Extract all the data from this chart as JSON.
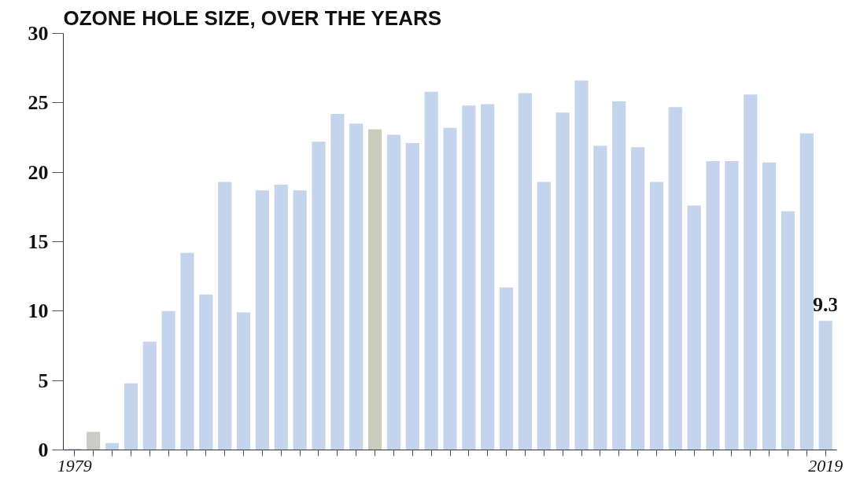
{
  "chart_data": {
    "type": "bar",
    "title": "OZONE HOLE SIZE, OVER THE YEARS",
    "x": [
      1979,
      1980,
      1981,
      1982,
      1983,
      1984,
      1985,
      1986,
      1987,
      1988,
      1989,
      1990,
      1991,
      1992,
      1993,
      1994,
      1995,
      1996,
      1997,
      1998,
      1999,
      2000,
      2001,
      2002,
      2003,
      2004,
      2005,
      2006,
      2007,
      2008,
      2009,
      2010,
      2011,
      2012,
      2013,
      2014,
      2015,
      2016,
      2017,
      2018,
      2019
    ],
    "values": [
      0.1,
      1.3,
      0.5,
      4.8,
      7.8,
      10.0,
      14.2,
      11.2,
      19.3,
      9.9,
      18.7,
      19.1,
      18.7,
      22.2,
      24.2,
      23.5,
      23.1,
      22.7,
      22.1,
      25.8,
      23.2,
      24.8,
      24.9,
      11.7,
      25.7,
      19.3,
      24.3,
      26.6,
      21.9,
      25.1,
      21.8,
      19.3,
      24.7,
      17.6,
      20.8,
      20.8,
      25.6,
      20.7,
      17.2,
      22.8,
      9.3
    ],
    "colors": [
      "#c4d4ec",
      "#c9cbc4",
      "#c4d4ec",
      "#c4d4ec",
      "#c4d4ec",
      "#c4d4ec",
      "#c4d4ec",
      "#c4d4ec",
      "#c4d4ec",
      "#c4d4ec",
      "#c4d4ec",
      "#c4d4ec",
      "#c4d4ec",
      "#c4d4ec",
      "#c4d4ec",
      "#c4d4ec",
      "#c9cbbd",
      "#c4d4ec",
      "#c4d4ec",
      "#c4d4ec",
      "#c4d4ec",
      "#c4d4ec",
      "#c4d4ec",
      "#c4d4ec",
      "#c4d4ec",
      "#c4d4ec",
      "#c4d4ec",
      "#c4d4ec",
      "#c4d4ec",
      "#c4d4ec",
      "#c4d4ec",
      "#c4d4ec",
      "#c4d4ec",
      "#c4d4ec",
      "#c4d4ec",
      "#c4d4ec",
      "#c4d4ec",
      "#c4d4ec",
      "#c4d4ec",
      "#c4d4ec",
      "#c4d4ec"
    ],
    "value_labels": [
      null,
      null,
      null,
      null,
      null,
      null,
      null,
      null,
      null,
      null,
      null,
      null,
      null,
      null,
      null,
      null,
      null,
      null,
      null,
      null,
      null,
      null,
      null,
      null,
      null,
      null,
      null,
      null,
      null,
      null,
      null,
      null,
      null,
      null,
      null,
      null,
      null,
      null,
      null,
      null,
      "9.3"
    ],
    "xlim": [
      1978.4,
      2019.6
    ],
    "xticks": [
      {
        "value": 1979,
        "label": "1979"
      },
      {
        "value": 1980,
        "label": null
      },
      {
        "value": 1981,
        "label": null
      },
      {
        "value": 1982,
        "label": null
      },
      {
        "value": 1983,
        "label": null
      },
      {
        "value": 1984,
        "label": null
      },
      {
        "value": 1985,
        "label": null
      },
      {
        "value": 1986,
        "label": null
      },
      {
        "value": 1987,
        "label": null
      },
      {
        "value": 1988,
        "label": null
      },
      {
        "value": 1989,
        "label": null
      },
      {
        "value": 1990,
        "label": null
      },
      {
        "value": 1991,
        "label": null
      },
      {
        "value": 1992,
        "label": null
      },
      {
        "value": 1993,
        "label": null
      },
      {
        "value": 1994,
        "label": null
      },
      {
        "value": 1995,
        "label": null
      },
      {
        "value": 1996,
        "label": null
      },
      {
        "value": 1997,
        "label": null
      },
      {
        "value": 1998,
        "label": null
      },
      {
        "value": 1999,
        "label": null
      },
      {
        "value": 2000,
        "label": null
      },
      {
        "value": 2001,
        "label": null
      },
      {
        "value": 2002,
        "label": null
      },
      {
        "value": 2003,
        "label": null
      },
      {
        "value": 2004,
        "label": null
      },
      {
        "value": 2005,
        "label": null
      },
      {
        "value": 2006,
        "label": null
      },
      {
        "value": 2007,
        "label": null
      },
      {
        "value": 2008,
        "label": null
      },
      {
        "value": 2009,
        "label": null
      },
      {
        "value": 2010,
        "label": null
      },
      {
        "value": 2011,
        "label": null
      },
      {
        "value": 2012,
        "label": null
      },
      {
        "value": 2013,
        "label": null
      },
      {
        "value": 2014,
        "label": null
      },
      {
        "value": 2015,
        "label": null
      },
      {
        "value": 2016,
        "label": null
      },
      {
        "value": 2017,
        "label": null
      },
      {
        "value": 2018,
        "label": null
      },
      {
        "value": 2019,
        "label": "2019"
      }
    ],
    "ylim": [
      0,
      30
    ],
    "yticks": [
      0,
      5,
      10,
      15,
      20,
      25,
      30
    ]
  }
}
